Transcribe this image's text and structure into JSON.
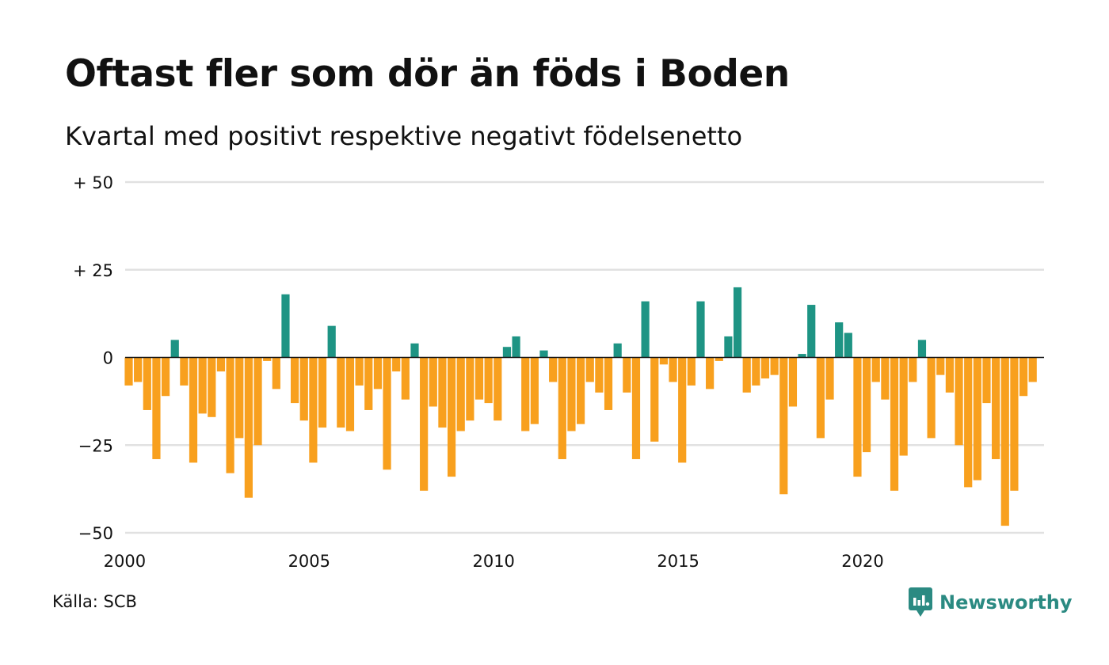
{
  "title": "Oftast fler som dör än föds i Boden",
  "subtitle": "Kvartal med positivt respektive negativt födelsenetto",
  "source": "Källa: SCB",
  "brand": {
    "name": "Newsworthy",
    "icon": "newsworthy-logo-icon"
  },
  "colors": {
    "positive": "#1e9484",
    "negative": "#f8a01e",
    "grid": "#e1e1e1",
    "zero": "#111111"
  },
  "chart_data": {
    "type": "bar",
    "title": "Oftast fler som dör än föds i Boden",
    "subtitle": "Kvartal med positivt respektive negativt födelsenetto",
    "xlabel": "",
    "ylabel": "",
    "ylim": [
      -50,
      50
    ],
    "yticks": [
      50,
      25,
      0,
      -25,
      -50
    ],
    "ytick_labels": [
      "+ 50",
      "+ 25",
      "0",
      "−25",
      "−50"
    ],
    "xticks": [
      2000,
      2005,
      2010,
      2015,
      2020
    ],
    "xtick_labels": [
      "2000",
      "2005",
      "2010",
      "2015",
      "2020"
    ],
    "grid": true,
    "legend": "none",
    "x_start": "2000 Q1",
    "values": [
      -8,
      -7,
      -15,
      -29,
      -11,
      5,
      -8,
      -30,
      -16,
      -17,
      -4,
      -33,
      -23,
      -40,
      -25,
      -1,
      -9,
      18,
      -13,
      -18,
      -30,
      -20,
      9,
      -20,
      -21,
      -8,
      -15,
      -9,
      -32,
      -4,
      -12,
      4,
      -38,
      -14,
      -20,
      -34,
      -21,
      -18,
      -12,
      -13,
      -18,
      3,
      6,
      -21,
      -19,
      2,
      -7,
      -29,
      -21,
      -19,
      -7,
      -10,
      -15,
      4,
      -10,
      -29,
      16,
      -24,
      -2,
      -7,
      -30,
      -8,
      16,
      -9,
      -1,
      6,
      20,
      -10,
      -8,
      -6,
      -5,
      -39,
      -14,
      1,
      15,
      -23,
      -12,
      10,
      7,
      -34,
      -27,
      -7,
      -12,
      -38,
      -28,
      -7,
      5,
      -23,
      -5,
      -10,
      -25,
      -37,
      -35,
      -13,
      -29,
      -48,
      -38,
      -11,
      -7
    ]
  }
}
